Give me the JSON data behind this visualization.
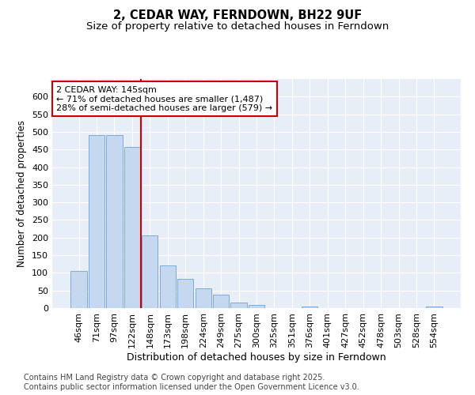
{
  "title": "2, CEDAR WAY, FERNDOWN, BH22 9UF",
  "subtitle": "Size of property relative to detached houses in Ferndown",
  "xlabel": "Distribution of detached houses by size in Ferndown",
  "ylabel": "Number of detached properties",
  "categories": [
    "46sqm",
    "71sqm",
    "97sqm",
    "122sqm",
    "148sqm",
    "173sqm",
    "198sqm",
    "224sqm",
    "249sqm",
    "275sqm",
    "300sqm",
    "325sqm",
    "351sqm",
    "376sqm",
    "401sqm",
    "427sqm",
    "452sqm",
    "478sqm",
    "503sqm",
    "528sqm",
    "554sqm"
  ],
  "values": [
    105,
    490,
    490,
    458,
    207,
    122,
    82,
    57,
    37,
    15,
    10,
    0,
    0,
    5,
    0,
    0,
    0,
    0,
    0,
    0,
    5
  ],
  "bar_color": "#c5d8f0",
  "bar_edge_color": "#7aabdc",
  "vline_x_index": 4,
  "vline_color": "#cc0000",
  "annotation_text": "2 CEDAR WAY: 145sqm\n← 71% of detached houses are smaller (1,487)\n28% of semi-detached houses are larger (579) →",
  "annotation_box_color": "#ffffff",
  "annotation_box_edge_color": "#cc0000",
  "ylim": [
    0,
    650
  ],
  "yticks": [
    0,
    50,
    100,
    150,
    200,
    250,
    300,
    350,
    400,
    450,
    500,
    550,
    600
  ],
  "background_color": "#e8eef7",
  "footer_text": "Contains HM Land Registry data © Crown copyright and database right 2025.\nContains public sector information licensed under the Open Government Licence v3.0.",
  "title_fontsize": 10.5,
  "subtitle_fontsize": 9.5,
  "xlabel_fontsize": 9,
  "ylabel_fontsize": 8.5,
  "tick_fontsize": 8,
  "annotation_fontsize": 8,
  "footer_fontsize": 7
}
